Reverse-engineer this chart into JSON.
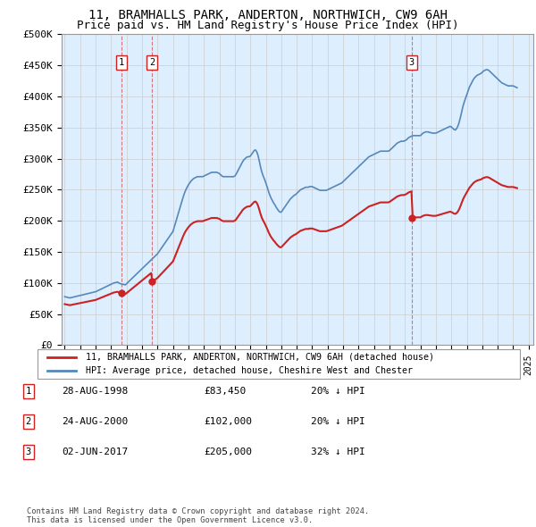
{
  "title": "11, BRAMHALLS PARK, ANDERTON, NORTHWICH, CW9 6AH",
  "subtitle": "Price paid vs. HM Land Registry's House Price Index (HPI)",
  "ylim": [
    0,
    500000
  ],
  "yticks": [
    0,
    50000,
    100000,
    150000,
    200000,
    250000,
    300000,
    350000,
    400000,
    450000,
    500000
  ],
  "ytick_labels": [
    "£0",
    "£50K",
    "£100K",
    "£150K",
    "£200K",
    "£250K",
    "£300K",
    "£350K",
    "£400K",
    "£450K",
    "£500K"
  ],
  "xlim_start": 1994.8,
  "xlim_end": 2025.3,
  "sale_dates": [
    1998.65,
    2000.65,
    2017.42
  ],
  "sale_prices": [
    83450,
    102000,
    205000
  ],
  "sale_labels": [
    "1",
    "2",
    "3"
  ],
  "hpi_line_color": "#5588bb",
  "price_line_color": "#cc2222",
  "sale_marker_color": "#cc2222",
  "grid_color": "#cccccc",
  "chart_bg_color": "#ddeeff",
  "legend_label_red": "11, BRAMHALLS PARK, ANDERTON, NORTHWICH, CW9 6AH (detached house)",
  "legend_label_blue": "HPI: Average price, detached house, Cheshire West and Chester",
  "table_entries": [
    {
      "num": "1",
      "date": "28-AUG-1998",
      "price": "£83,450",
      "hpi": "20% ↓ HPI"
    },
    {
      "num": "2",
      "date": "24-AUG-2000",
      "price": "£102,000",
      "hpi": "20% ↓ HPI"
    },
    {
      "num": "3",
      "date": "02-JUN-2017",
      "price": "£205,000",
      "hpi": "32% ↓ HPI"
    }
  ],
  "footnote": "Contains HM Land Registry data © Crown copyright and database right 2024.\nThis data is licensed under the Open Government Licence v3.0.",
  "hpi_data_x": [
    1995.0,
    1995.083,
    1995.167,
    1995.25,
    1995.333,
    1995.417,
    1995.5,
    1995.583,
    1995.667,
    1995.75,
    1995.833,
    1995.917,
    1996.0,
    1996.083,
    1996.167,
    1996.25,
    1996.333,
    1996.417,
    1996.5,
    1996.583,
    1996.667,
    1996.75,
    1996.833,
    1996.917,
    1997.0,
    1997.083,
    1997.167,
    1997.25,
    1997.333,
    1997.417,
    1997.5,
    1997.583,
    1997.667,
    1997.75,
    1997.833,
    1997.917,
    1998.0,
    1998.083,
    1998.167,
    1998.25,
    1998.333,
    1998.417,
    1998.5,
    1998.583,
    1998.667,
    1998.75,
    1998.833,
    1998.917,
    1999.0,
    1999.083,
    1999.167,
    1999.25,
    1999.333,
    1999.417,
    1999.5,
    1999.583,
    1999.667,
    1999.75,
    1999.833,
    1999.917,
    2000.0,
    2000.083,
    2000.167,
    2000.25,
    2000.333,
    2000.417,
    2000.5,
    2000.583,
    2000.667,
    2000.75,
    2000.833,
    2000.917,
    2001.0,
    2001.083,
    2001.167,
    2001.25,
    2001.333,
    2001.417,
    2001.5,
    2001.583,
    2001.667,
    2001.75,
    2001.833,
    2001.917,
    2002.0,
    2002.083,
    2002.167,
    2002.25,
    2002.333,
    2002.417,
    2002.5,
    2002.583,
    2002.667,
    2002.75,
    2002.833,
    2002.917,
    2003.0,
    2003.083,
    2003.167,
    2003.25,
    2003.333,
    2003.417,
    2003.5,
    2003.583,
    2003.667,
    2003.75,
    2003.833,
    2003.917,
    2004.0,
    2004.083,
    2004.167,
    2004.25,
    2004.333,
    2004.417,
    2004.5,
    2004.583,
    2004.667,
    2004.75,
    2004.833,
    2004.917,
    2005.0,
    2005.083,
    2005.167,
    2005.25,
    2005.333,
    2005.417,
    2005.5,
    2005.583,
    2005.667,
    2005.75,
    2005.833,
    2005.917,
    2006.0,
    2006.083,
    2006.167,
    2006.25,
    2006.333,
    2006.417,
    2006.5,
    2006.583,
    2006.667,
    2006.75,
    2006.833,
    2006.917,
    2007.0,
    2007.083,
    2007.167,
    2007.25,
    2007.333,
    2007.417,
    2007.5,
    2007.583,
    2007.667,
    2007.75,
    2007.833,
    2007.917,
    2008.0,
    2008.083,
    2008.167,
    2008.25,
    2008.333,
    2008.417,
    2008.5,
    2008.583,
    2008.667,
    2008.75,
    2008.833,
    2008.917,
    2009.0,
    2009.083,
    2009.167,
    2009.25,
    2009.333,
    2009.417,
    2009.5,
    2009.583,
    2009.667,
    2009.75,
    2009.833,
    2009.917,
    2010.0,
    2010.083,
    2010.167,
    2010.25,
    2010.333,
    2010.417,
    2010.5,
    2010.583,
    2010.667,
    2010.75,
    2010.833,
    2010.917,
    2011.0,
    2011.083,
    2011.167,
    2011.25,
    2011.333,
    2011.417,
    2011.5,
    2011.583,
    2011.667,
    2011.75,
    2011.833,
    2011.917,
    2012.0,
    2012.083,
    2012.167,
    2012.25,
    2012.333,
    2012.417,
    2012.5,
    2012.583,
    2012.667,
    2012.75,
    2012.833,
    2012.917,
    2013.0,
    2013.083,
    2013.167,
    2013.25,
    2013.333,
    2013.417,
    2013.5,
    2013.583,
    2013.667,
    2013.75,
    2013.833,
    2013.917,
    2014.0,
    2014.083,
    2014.167,
    2014.25,
    2014.333,
    2014.417,
    2014.5,
    2014.583,
    2014.667,
    2014.75,
    2014.833,
    2014.917,
    2015.0,
    2015.083,
    2015.167,
    2015.25,
    2015.333,
    2015.417,
    2015.5,
    2015.583,
    2015.667,
    2015.75,
    2015.833,
    2015.917,
    2016.0,
    2016.083,
    2016.167,
    2016.25,
    2016.333,
    2016.417,
    2016.5,
    2016.583,
    2016.667,
    2016.75,
    2016.833,
    2016.917,
    2017.0,
    2017.083,
    2017.167,
    2017.25,
    2017.333,
    2017.417,
    2017.5,
    2017.583,
    2017.667,
    2017.75,
    2017.833,
    2017.917,
    2018.0,
    2018.083,
    2018.167,
    2018.25,
    2018.333,
    2018.417,
    2018.5,
    2018.583,
    2018.667,
    2018.75,
    2018.833,
    2018.917,
    2019.0,
    2019.083,
    2019.167,
    2019.25,
    2019.333,
    2019.417,
    2019.5,
    2019.583,
    2019.667,
    2019.75,
    2019.833,
    2019.917,
    2020.0,
    2020.083,
    2020.167,
    2020.25,
    2020.333,
    2020.417,
    2020.5,
    2020.583,
    2020.667,
    2020.75,
    2020.833,
    2020.917,
    2021.0,
    2021.083,
    2021.167,
    2021.25,
    2021.333,
    2021.417,
    2021.5,
    2021.583,
    2021.667,
    2021.75,
    2021.833,
    2021.917,
    2022.0,
    2022.083,
    2022.167,
    2022.25,
    2022.333,
    2022.417,
    2022.5,
    2022.583,
    2022.667,
    2022.75,
    2022.833,
    2022.917,
    2023.0,
    2023.083,
    2023.167,
    2023.25,
    2023.333,
    2023.417,
    2023.5,
    2023.583,
    2023.667,
    2023.75,
    2023.833,
    2023.917,
    2024.0,
    2024.083,
    2024.167,
    2024.25
  ],
  "hpi_data_y": [
    78000,
    77500,
    77000,
    76500,
    76000,
    76500,
    77000,
    77500,
    78000,
    78500,
    79000,
    79500,
    80000,
    80500,
    81000,
    81500,
    82000,
    82500,
    83000,
    83500,
    84000,
    84500,
    85000,
    85500,
    86000,
    87000,
    88000,
    89000,
    90000,
    91000,
    92000,
    93000,
    94000,
    95000,
    96000,
    97000,
    98000,
    99000,
    100000,
    100500,
    101000,
    101500,
    100000,
    99000,
    98500,
    98000,
    97500,
    97000,
    99000,
    101000,
    103000,
    105000,
    107000,
    109000,
    111000,
    113000,
    115000,
    117000,
    119000,
    121000,
    123000,
    125000,
    127000,
    129000,
    131000,
    133000,
    135000,
    137000,
    139000,
    141000,
    143000,
    145000,
    147000,
    150000,
    153000,
    156000,
    159000,
    162000,
    165000,
    168000,
    171000,
    174000,
    177000,
    180000,
    183000,
    190000,
    197000,
    204000,
    211000,
    218000,
    225000,
    232000,
    239000,
    245000,
    250000,
    254000,
    258000,
    261000,
    264000,
    266000,
    268000,
    269000,
    270000,
    271000,
    271000,
    271000,
    271000,
    271000,
    272000,
    273000,
    274000,
    275000,
    276000,
    277000,
    278000,
    278000,
    278000,
    278000,
    278000,
    277000,
    276000,
    274000,
    272000,
    271000,
    271000,
    271000,
    271000,
    271000,
    271000,
    271000,
    271000,
    271000,
    272000,
    275000,
    279000,
    283000,
    287000,
    291000,
    295000,
    298000,
    300000,
    302000,
    303000,
    303000,
    304000,
    307000,
    310000,
    313000,
    314000,
    311000,
    305000,
    296000,
    286000,
    278000,
    272000,
    267000,
    261000,
    255000,
    248000,
    242000,
    237000,
    233000,
    229000,
    226000,
    222000,
    219000,
    216000,
    214000,
    214000,
    217000,
    220000,
    223000,
    226000,
    229000,
    232000,
    235000,
    237000,
    239000,
    241000,
    242000,
    244000,
    246000,
    248000,
    250000,
    251000,
    252000,
    253000,
    254000,
    254000,
    254000,
    255000,
    255000,
    255000,
    254000,
    253000,
    252000,
    251000,
    250000,
    249000,
    249000,
    249000,
    249000,
    249000,
    249000,
    250000,
    251000,
    252000,
    253000,
    254000,
    255000,
    256000,
    257000,
    258000,
    259000,
    260000,
    261000,
    263000,
    265000,
    267000,
    269000,
    271000,
    273000,
    275000,
    277000,
    279000,
    281000,
    283000,
    285000,
    287000,
    289000,
    291000,
    293000,
    295000,
    297000,
    299000,
    301000,
    303000,
    304000,
    305000,
    306000,
    307000,
    308000,
    309000,
    310000,
    311000,
    312000,
    312000,
    312000,
    312000,
    312000,
    312000,
    312000,
    313000,
    315000,
    317000,
    319000,
    321000,
    323000,
    325000,
    326000,
    327000,
    328000,
    328000,
    328000,
    329000,
    330000,
    332000,
    334000,
    335000,
    336000,
    337000,
    337000,
    337000,
    337000,
    337000,
    337000,
    337000,
    339000,
    341000,
    342000,
    343000,
    343000,
    343000,
    342000,
    342000,
    341000,
    341000,
    341000,
    341000,
    342000,
    343000,
    344000,
    345000,
    346000,
    347000,
    348000,
    349000,
    350000,
    351000,
    352000,
    351000,
    349000,
    347000,
    346000,
    348000,
    352000,
    358000,
    366000,
    375000,
    384000,
    391000,
    397000,
    403000,
    409000,
    415000,
    419000,
    423000,
    427000,
    430000,
    432000,
    434000,
    435000,
    436000,
    437000,
    439000,
    441000,
    442000,
    443000,
    443000,
    442000,
    440000,
    438000,
    436000,
    434000,
    432000,
    430000,
    428000,
    426000,
    424000,
    422000,
    421000,
    420000,
    419000,
    418000,
    417000,
    417000,
    417000,
    417000,
    417000,
    416000,
    415000,
    414000
  ]
}
